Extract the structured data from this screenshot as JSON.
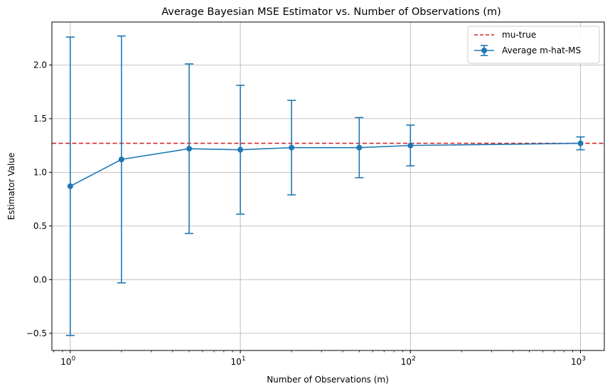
{
  "chart_data": {
    "type": "line",
    "title": "Average Bayesian MSE Estimator vs. Number of Observations (m)",
    "xlabel": "Number of Observations (m)",
    "ylabel": "Estimator Value",
    "xscale": "log",
    "xlim": [
      0.78,
      1380
    ],
    "ylim": [
      -0.66,
      2.4
    ],
    "grid": true,
    "legend_position": "top-right",
    "x_ticks": [
      {
        "value": 1,
        "base": "10",
        "exp": "0"
      },
      {
        "value": 10,
        "base": "10",
        "exp": "1"
      },
      {
        "value": 100,
        "base": "10",
        "exp": "2"
      },
      {
        "value": 1000,
        "base": "10",
        "exp": "3"
      }
    ],
    "y_ticks": [
      {
        "value": -0.5,
        "label": "−0.5"
      },
      {
        "value": 0.0,
        "label": "0.0"
      },
      {
        "value": 0.5,
        "label": "0.5"
      },
      {
        "value": 1.0,
        "label": "1.0"
      },
      {
        "value": 1.5,
        "label": "1.5"
      },
      {
        "value": 2.0,
        "label": "2.0"
      }
    ],
    "reference_line": {
      "name": "mu-true",
      "y": 1.27,
      "color": "#d62728",
      "style": "dashed"
    },
    "series": [
      {
        "name": "Average m-hat-MS",
        "color": "#1f77b4",
        "x": [
          1,
          2,
          5,
          10,
          20,
          50,
          100,
          1000
        ],
        "y": [
          0.87,
          1.12,
          1.22,
          1.21,
          1.23,
          1.23,
          1.25,
          1.27
        ],
        "yerr": [
          1.39,
          1.15,
          0.79,
          0.6,
          0.44,
          0.28,
          0.19,
          0.06
        ]
      }
    ]
  }
}
